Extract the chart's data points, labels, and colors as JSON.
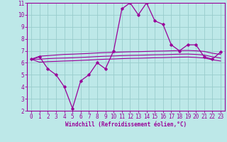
{
  "xlabel": "Windchill (Refroidissement éolien,°C)",
  "bg_color": "#bde8e8",
  "line_color": "#990099",
  "grid_color": "#99cccc",
  "xlim": [
    -0.5,
    23.5
  ],
  "ylim": [
    2,
    11
  ],
  "xticks": [
    0,
    1,
    2,
    3,
    4,
    5,
    6,
    7,
    8,
    9,
    10,
    11,
    12,
    13,
    14,
    15,
    16,
    17,
    18,
    19,
    20,
    21,
    22,
    23
  ],
  "yticks": [
    2,
    3,
    4,
    5,
    6,
    7,
    8,
    9,
    10,
    11
  ],
  "main_y": [
    6.3,
    6.5,
    5.5,
    5.0,
    4.0,
    2.2,
    4.5,
    5.0,
    6.0,
    5.5,
    7.0,
    10.5,
    11.0,
    10.0,
    11.0,
    9.5,
    9.2,
    7.5,
    7.0,
    7.5,
    7.5,
    6.5,
    6.3,
    6.9
  ],
  "line_top_y": [
    6.3,
    6.55,
    6.6,
    6.65,
    6.7,
    6.72,
    6.75,
    6.78,
    6.82,
    6.85,
    6.87,
    6.9,
    6.92,
    6.93,
    6.95,
    6.97,
    6.98,
    7.0,
    7.02,
    7.03,
    7.0,
    6.95,
    6.8,
    6.7
  ],
  "line_mid_y": [
    6.3,
    6.3,
    6.35,
    6.38,
    6.4,
    6.42,
    6.45,
    6.48,
    6.52,
    6.55,
    6.57,
    6.6,
    6.62,
    6.63,
    6.65,
    6.67,
    6.68,
    6.7,
    6.72,
    6.73,
    6.7,
    6.65,
    6.5,
    6.4
  ],
  "line_bot_y": [
    6.3,
    6.05,
    6.1,
    6.12,
    6.15,
    6.17,
    6.2,
    6.23,
    6.27,
    6.3,
    6.32,
    6.35,
    6.37,
    6.38,
    6.4,
    6.42,
    6.43,
    6.45,
    6.47,
    6.48,
    6.45,
    6.4,
    6.25,
    6.15
  ]
}
